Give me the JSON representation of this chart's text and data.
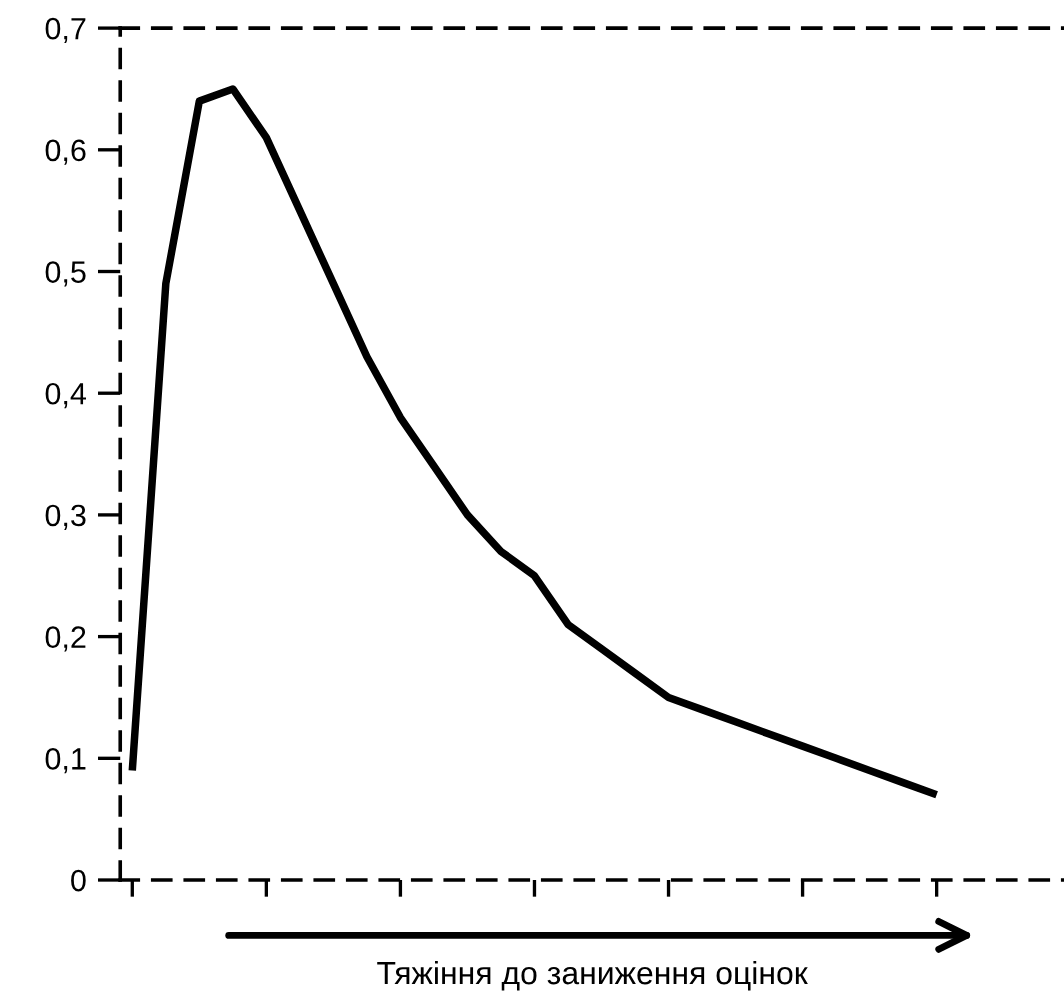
{
  "chart_data": {
    "type": "line",
    "xlabel": "Тяжіння до заниження оцінок",
    "categories": [
      null,
      null,
      null,
      null,
      null,
      null,
      null,
      null,
      null,
      null,
      null,
      null,
      null,
      null,
      null,
      null,
      null,
      null,
      null,
      null,
      null,
      null,
      null,
      null,
      null
    ],
    "series": [
      {
        "color": "#000000",
        "values": [
          0.09,
          0.49,
          0.64,
          0.65,
          0.61,
          0.55,
          0.49,
          0.43,
          0.38,
          0.34,
          0.3,
          0.27,
          0.25,
          0.21,
          0.19,
          0.17,
          0.15,
          0.14,
          0.13,
          0.12,
          0.11,
          0.1,
          0.09,
          0.08,
          0.07
        ]
      }
    ],
    "ylim": [
      0,
      0.7
    ],
    "yticks": [
      0,
      {
        "value": 0.1,
        "label": "0,1"
      },
      {
        "value": 0.2,
        "label": "0,2"
      },
      {
        "value": 0.3,
        "label": "0,3"
      },
      {
        "value": 0.4,
        "label": "0,4"
      },
      {
        "value": 0.5,
        "label": "0,5"
      },
      {
        "value": 0.6,
        "label": "0,6"
      },
      {
        "value": 0.7,
        "label": "0,7"
      }
    ],
    "grid": false,
    "legend": false,
    "marker": "none",
    "line_style": "solid",
    "tick_labels": "y"
  }
}
